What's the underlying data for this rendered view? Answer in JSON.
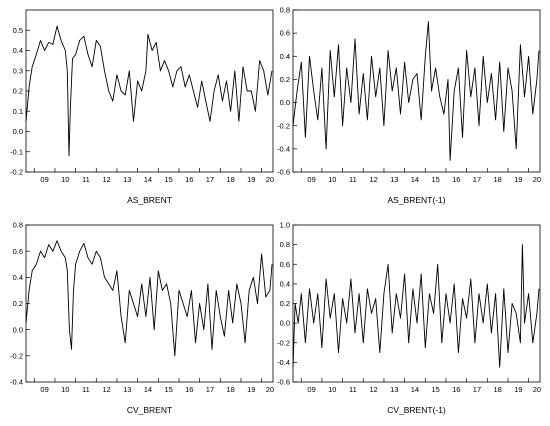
{
  "chart_data": [
    {
      "type": "line",
      "title": "AS_BRENT",
      "ylim": [
        -0.2,
        0.6
      ],
      "yticks": [
        -0.2,
        -0.1,
        0.0,
        0.1,
        0.2,
        0.3,
        0.4,
        0.5
      ],
      "xticks": [
        "09",
        "10",
        "11",
        "12",
        "13",
        "14",
        "15",
        "16",
        "17",
        "18",
        "19",
        "20"
      ],
      "x_start": 2008.6,
      "x_end": 2020.55,
      "series": [
        {
          "x": [
            2008.6,
            2008.75,
            2008.9,
            2009.1,
            2009.3,
            2009.5,
            2009.7,
            2009.9,
            2010.1,
            2010.3,
            2010.5,
            2010.6,
            2010.68,
            2010.75,
            2010.85,
            2011.0,
            2011.2,
            2011.4,
            2011.6,
            2011.8,
            2012.0,
            2012.2,
            2012.4,
            2012.6,
            2012.8,
            2013.0,
            2013.2,
            2013.4,
            2013.6,
            2013.8,
            2014.0,
            2014.2,
            2014.4,
            2014.5,
            2014.7,
            2014.9,
            2015.1,
            2015.3,
            2015.5,
            2015.7,
            2015.9,
            2016.1,
            2016.3,
            2016.5,
            2016.7,
            2016.9,
            2017.1,
            2017.3,
            2017.5,
            2017.7,
            2017.9,
            2018.1,
            2018.3,
            2018.5,
            2018.7,
            2018.9,
            2019.1,
            2019.3,
            2019.5,
            2019.7,
            2019.9,
            2020.1,
            2020.3,
            2020.5
          ],
          "y": [
            0.05,
            0.22,
            0.32,
            0.38,
            0.45,
            0.4,
            0.44,
            0.43,
            0.52,
            0.45,
            0.4,
            0.3,
            -0.12,
            0.12,
            0.36,
            0.38,
            0.45,
            0.47,
            0.38,
            0.32,
            0.45,
            0.42,
            0.3,
            0.2,
            0.15,
            0.28,
            0.2,
            0.18,
            0.3,
            0.05,
            0.25,
            0.2,
            0.3,
            0.48,
            0.4,
            0.44,
            0.3,
            0.35,
            0.3,
            0.22,
            0.3,
            0.32,
            0.22,
            0.28,
            0.2,
            0.12,
            0.25,
            0.15,
            0.05,
            0.2,
            0.28,
            0.15,
            0.25,
            0.1,
            0.3,
            0.05,
            0.32,
            0.2,
            0.2,
            0.1,
            0.35,
            0.3,
            0.18,
            0.3
          ]
        }
      ]
    },
    {
      "type": "line",
      "title": "AS_BRENT(-1)",
      "ylim": [
        -0.6,
        0.8
      ],
      "yticks": [
        -0.6,
        -0.4,
        -0.2,
        0.0,
        0.2,
        0.4,
        0.6,
        0.8
      ],
      "xticks": [
        "09",
        "10",
        "11",
        "12",
        "13",
        "14",
        "15",
        "16",
        "17",
        "18",
        "19",
        "20"
      ],
      "x_start": 2008.6,
      "x_end": 2020.55,
      "series": [
        {
          "x": [
            2008.6,
            2008.8,
            2009.0,
            2009.2,
            2009.4,
            2009.6,
            2009.8,
            2010.0,
            2010.2,
            2010.4,
            2010.6,
            2010.8,
            2011.0,
            2011.2,
            2011.4,
            2011.6,
            2011.8,
            2012.0,
            2012.2,
            2012.4,
            2012.6,
            2012.8,
            2013.0,
            2013.2,
            2013.4,
            2013.6,
            2013.8,
            2014.0,
            2014.2,
            2014.4,
            2014.6,
            2014.8,
            2015.0,
            2015.15,
            2015.3,
            2015.5,
            2015.7,
            2015.9,
            2016.1,
            2016.2,
            2016.4,
            2016.6,
            2016.8,
            2017.0,
            2017.2,
            2017.4,
            2017.6,
            2017.8,
            2018.0,
            2018.2,
            2018.4,
            2018.6,
            2018.8,
            2019.0,
            2019.2,
            2019.4,
            2019.6,
            2019.8,
            2020.0,
            2020.2,
            2020.4,
            2020.5
          ],
          "y": [
            -0.2,
            0.1,
            0.35,
            -0.3,
            0.4,
            0.1,
            -0.15,
            0.3,
            -0.4,
            0.45,
            0.05,
            0.5,
            -0.2,
            0.3,
            0.0,
            0.55,
            -0.1,
            0.25,
            -0.15,
            0.4,
            0.05,
            0.3,
            -0.2,
            0.45,
            0.1,
            0.3,
            -0.1,
            0.35,
            0.0,
            0.2,
            0.25,
            -0.15,
            0.4,
            0.7,
            0.1,
            0.3,
            0.05,
            -0.1,
            0.2,
            -0.5,
            0.1,
            0.3,
            -0.3,
            0.45,
            0.05,
            0.3,
            -0.2,
            0.4,
            0.0,
            0.25,
            -0.15,
            0.35,
            -0.25,
            0.3,
            0.1,
            -0.4,
            0.5,
            0.05,
            0.4,
            -0.1,
            0.2,
            0.45
          ]
        }
      ]
    },
    {
      "type": "line",
      "title": "CV_BRENT",
      "ylim": [
        -0.4,
        0.8
      ],
      "yticks": [
        -0.4,
        -0.2,
        0.0,
        0.2,
        0.4,
        0.6,
        0.8
      ],
      "xticks": [
        "09",
        "10",
        "11",
        "12",
        "13",
        "14",
        "15",
        "16",
        "17",
        "18",
        "19",
        "20"
      ],
      "x_start": 2008.6,
      "x_end": 2020.55,
      "series": [
        {
          "x": [
            2008.6,
            2008.75,
            2008.9,
            2009.1,
            2009.3,
            2009.5,
            2009.7,
            2009.9,
            2010.1,
            2010.3,
            2010.5,
            2010.6,
            2010.7,
            2010.8,
            2010.9,
            2011.0,
            2011.2,
            2011.4,
            2011.6,
            2011.8,
            2012.0,
            2012.2,
            2012.4,
            2012.6,
            2012.8,
            2013.0,
            2013.2,
            2013.4,
            2013.6,
            2013.8,
            2014.0,
            2014.2,
            2014.4,
            2014.6,
            2014.8,
            2015.0,
            2015.2,
            2015.4,
            2015.6,
            2015.8,
            2016.0,
            2016.2,
            2016.4,
            2016.6,
            2016.8,
            2017.0,
            2017.2,
            2017.4,
            2017.6,
            2017.8,
            2018.0,
            2018.2,
            2018.4,
            2018.6,
            2018.8,
            2019.0,
            2019.2,
            2019.4,
            2019.6,
            2019.8,
            2020.0,
            2020.2,
            2020.4,
            2020.5
          ],
          "y": [
            0.05,
            0.3,
            0.45,
            0.5,
            0.6,
            0.55,
            0.65,
            0.6,
            0.68,
            0.6,
            0.55,
            0.45,
            0.0,
            -0.15,
            0.3,
            0.5,
            0.6,
            0.66,
            0.55,
            0.5,
            0.6,
            0.55,
            0.4,
            0.35,
            0.3,
            0.45,
            0.1,
            -0.1,
            0.3,
            0.2,
            0.1,
            0.35,
            0.1,
            0.4,
            0.0,
            0.45,
            0.3,
            0.35,
            0.2,
            -0.2,
            0.3,
            0.2,
            0.1,
            0.3,
            -0.1,
            0.2,
            0.0,
            0.35,
            -0.15,
            0.3,
            0.1,
            -0.05,
            0.3,
            0.05,
            0.35,
            0.2,
            -0.1,
            0.3,
            0.4,
            0.2,
            0.58,
            0.25,
            0.3,
            0.5
          ]
        }
      ]
    },
    {
      "type": "line",
      "title": "CV_BRENT(-1)",
      "ylim": [
        -0.6,
        1.0
      ],
      "yticks": [
        -0.6,
        -0.4,
        -0.2,
        0.0,
        0.2,
        0.4,
        0.6,
        0.8,
        1.0
      ],
      "xticks": [
        "09",
        "10",
        "11",
        "12",
        "13",
        "14",
        "15",
        "16",
        "17",
        "18",
        "19",
        "20"
      ],
      "x_start": 2008.6,
      "x_end": 2020.55,
      "series": [
        {
          "x": [
            2008.6,
            2008.7,
            2008.85,
            2009.0,
            2009.2,
            2009.4,
            2009.6,
            2009.8,
            2010.0,
            2010.2,
            2010.4,
            2010.6,
            2010.8,
            2011.0,
            2011.2,
            2011.4,
            2011.6,
            2011.8,
            2012.0,
            2012.2,
            2012.4,
            2012.6,
            2012.8,
            2013.0,
            2013.2,
            2013.4,
            2013.6,
            2013.8,
            2014.0,
            2014.2,
            2014.4,
            2014.6,
            2014.8,
            2015.0,
            2015.2,
            2015.4,
            2015.6,
            2015.8,
            2016.0,
            2016.2,
            2016.4,
            2016.6,
            2016.8,
            2017.0,
            2017.2,
            2017.4,
            2017.6,
            2017.8,
            2018.0,
            2018.2,
            2018.4,
            2018.6,
            2018.8,
            2019.0,
            2019.2,
            2019.4,
            2019.6,
            2019.7,
            2019.8,
            2020.0,
            2020.2,
            2020.4,
            2020.5
          ],
          "y": [
            -0.45,
            0.2,
            0.0,
            0.3,
            -0.2,
            0.35,
            0.0,
            0.3,
            -0.25,
            0.45,
            0.05,
            0.3,
            -0.3,
            0.25,
            0.0,
            0.45,
            -0.1,
            0.3,
            -0.2,
            0.35,
            0.1,
            0.25,
            -0.3,
            0.3,
            0.6,
            -0.1,
            0.3,
            0.05,
            0.5,
            -0.2,
            0.35,
            0.0,
            0.5,
            -0.25,
            0.3,
            0.1,
            0.6,
            -0.2,
            0.3,
            0.0,
            0.4,
            -0.3,
            0.25,
            0.05,
            0.45,
            -0.2,
            0.3,
            0.0,
            0.4,
            -0.1,
            0.3,
            -0.45,
            0.35,
            -0.3,
            0.2,
            0.1,
            -0.2,
            0.8,
            0.0,
            0.3,
            -0.2,
            0.1,
            0.35
          ]
        }
      ]
    }
  ]
}
